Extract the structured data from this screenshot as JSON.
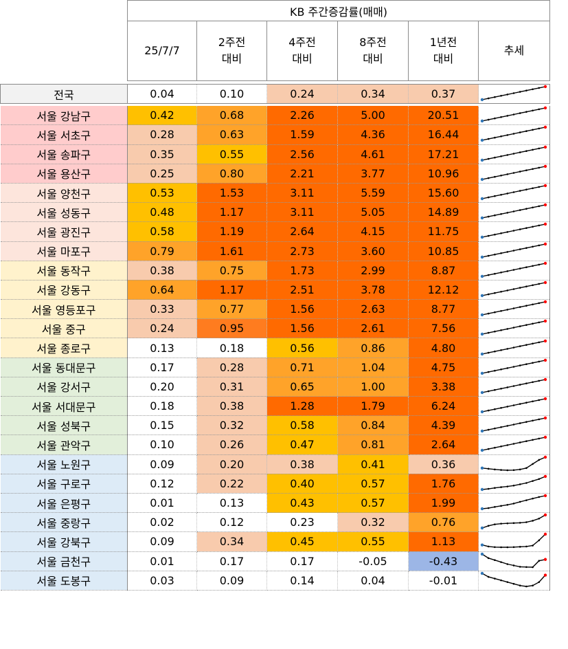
{
  "header": {
    "group_title": "KB 주간증감률(매매)",
    "columns": [
      {
        "line1": "25/7/7",
        "line2": ""
      },
      {
        "line1": "2주전",
        "line2": "대비"
      },
      {
        "line1": "4주전",
        "line2": "대비"
      },
      {
        "line1": "8주전",
        "line2": "대비"
      },
      {
        "line1": "1년전",
        "line2": "대비"
      }
    ],
    "trend_label": "추세"
  },
  "colors": {
    "cell_white": "#ffffff",
    "cell_peach": "#f8cbad",
    "cell_yellow": "#ffc000",
    "cell_orange_light": "#ffa329",
    "cell_orange": "#ff7c1f",
    "cell_orange_dark": "#ff6a00",
    "cell_blue": "#9cb6e6",
    "group_national": "#f2f2f2",
    "group_pink": "#ffcccc",
    "group_light_pink": "#fde5dc",
    "group_cream": "#fff2cc",
    "group_green": "#e2efda",
    "group_blue": "#ddebf7",
    "sparkline_line": "#000000",
    "sparkline_start": "#2e75b6",
    "sparkline_end": "#ff0000"
  },
  "chart_data": {
    "type": "table",
    "title": "KB 주간증감률(매매)",
    "columns": [
      "25/7/7",
      "2주전 대비",
      "4주전 대비",
      "8주전 대비",
      "1년전 대비",
      "추세"
    ],
    "rows": [
      {
        "region": "전국",
        "group": "national",
        "values": [
          0.04,
          0.1,
          0.24,
          0.34,
          0.37
        ],
        "colors": [
          "white",
          "white",
          "peach",
          "peach",
          "peach"
        ],
        "trend": [
          1,
          2,
          3,
          4,
          5,
          6,
          7,
          8,
          9,
          10,
          11
        ]
      },
      {
        "region": "서울 강남구",
        "group": "pink",
        "values": [
          0.42,
          0.68,
          2.26,
          5.0,
          20.51
        ],
        "colors": [
          "yellow",
          "orange_light",
          "orange_dark",
          "orange_dark",
          "orange_dark"
        ],
        "trend": [
          1,
          2,
          3,
          4,
          5,
          6,
          7,
          8,
          9,
          10,
          11
        ]
      },
      {
        "region": "서울 서초구",
        "group": "pink",
        "values": [
          0.28,
          0.63,
          1.59,
          4.36,
          16.44
        ],
        "colors": [
          "peach",
          "orange_light",
          "orange_dark",
          "orange_dark",
          "orange_dark"
        ],
        "trend": [
          1,
          2,
          3,
          4,
          5,
          6,
          7,
          8,
          9,
          10,
          11
        ]
      },
      {
        "region": "서울 송파구",
        "group": "pink",
        "values": [
          0.35,
          0.55,
          2.56,
          4.61,
          17.21
        ],
        "colors": [
          "peach",
          "yellow",
          "orange_dark",
          "orange_dark",
          "orange_dark"
        ],
        "trend": [
          1,
          2,
          3,
          4,
          5,
          6,
          7,
          8,
          9,
          10,
          11
        ]
      },
      {
        "region": "서울 용산구",
        "group": "pink",
        "values": [
          0.25,
          0.8,
          2.21,
          3.77,
          10.96
        ],
        "colors": [
          "peach",
          "orange_light",
          "orange_dark",
          "orange_dark",
          "orange_dark"
        ],
        "trend": [
          1,
          2,
          3,
          4,
          5,
          6,
          7,
          8,
          9,
          10,
          11
        ]
      },
      {
        "region": "서울 양천구",
        "group": "light_pink",
        "values": [
          0.53,
          1.53,
          3.11,
          5.59,
          15.6
        ],
        "colors": [
          "yellow",
          "orange_dark",
          "orange_dark",
          "orange_dark",
          "orange_dark"
        ],
        "trend": [
          1,
          2,
          3,
          4,
          5,
          6,
          7,
          8,
          9,
          10,
          11
        ]
      },
      {
        "region": "서울 성동구",
        "group": "light_pink",
        "values": [
          0.48,
          1.17,
          3.11,
          5.05,
          14.89
        ],
        "colors": [
          "yellow",
          "orange_dark",
          "orange_dark",
          "orange_dark",
          "orange_dark"
        ],
        "trend": [
          1,
          2,
          3,
          4,
          5,
          6,
          7,
          8,
          9,
          10,
          11
        ]
      },
      {
        "region": "서울 광진구",
        "group": "light_pink",
        "values": [
          0.58,
          1.19,
          2.64,
          4.15,
          11.75
        ],
        "colors": [
          "yellow",
          "orange_dark",
          "orange_dark",
          "orange_dark",
          "orange_dark"
        ],
        "trend": [
          1,
          2,
          3,
          4,
          5,
          6,
          7,
          8,
          9,
          10,
          11
        ]
      },
      {
        "region": "서울 마포구",
        "group": "light_pink",
        "values": [
          0.79,
          1.61,
          2.73,
          3.6,
          10.85
        ],
        "colors": [
          "orange_light",
          "orange_dark",
          "orange_dark",
          "orange_dark",
          "orange_dark"
        ],
        "trend": [
          1,
          2,
          3,
          4,
          5,
          6,
          7,
          8,
          9,
          10,
          11
        ]
      },
      {
        "region": "서울 동작구",
        "group": "cream",
        "values": [
          0.38,
          0.75,
          1.73,
          2.99,
          8.87
        ],
        "colors": [
          "peach",
          "orange_light",
          "orange_dark",
          "orange_dark",
          "orange_dark"
        ],
        "trend": [
          1,
          2,
          3,
          4,
          5,
          6,
          7,
          8,
          9,
          10,
          11
        ]
      },
      {
        "region": "서울 강동구",
        "group": "cream",
        "values": [
          0.64,
          1.17,
          2.51,
          3.78,
          12.12
        ],
        "colors": [
          "orange_light",
          "orange_dark",
          "orange_dark",
          "orange_dark",
          "orange_dark"
        ],
        "trend": [
          1,
          2,
          3,
          4,
          5,
          6,
          7,
          8,
          9,
          10,
          11
        ]
      },
      {
        "region": "서울 영등포구",
        "group": "cream",
        "values": [
          0.33,
          0.77,
          1.56,
          2.63,
          8.77
        ],
        "colors": [
          "peach",
          "orange_light",
          "orange_dark",
          "orange_dark",
          "orange_dark"
        ],
        "trend": [
          1,
          2,
          3,
          4,
          5,
          6,
          7,
          8,
          9,
          10,
          11
        ]
      },
      {
        "region": "서울 중구",
        "group": "cream",
        "values": [
          0.24,
          0.95,
          1.56,
          2.61,
          7.56
        ],
        "colors": [
          "peach",
          "orange",
          "orange_dark",
          "orange_dark",
          "orange_dark"
        ],
        "trend": [
          1,
          2,
          3,
          4,
          5,
          6,
          7,
          8,
          9,
          10,
          11
        ]
      },
      {
        "region": "서울 종로구",
        "group": "cream",
        "values": [
          0.13,
          0.18,
          0.56,
          0.86,
          4.8
        ],
        "colors": [
          "white",
          "white",
          "yellow",
          "orange_light",
          "orange_dark"
        ],
        "trend": [
          1,
          2,
          3,
          4,
          5,
          6,
          7,
          8,
          9,
          10,
          11
        ]
      },
      {
        "region": "서울 동대문구",
        "group": "green",
        "values": [
          0.17,
          0.28,
          0.71,
          1.04,
          4.75
        ],
        "colors": [
          "white",
          "peach",
          "orange_light",
          "orange_light",
          "orange_dark"
        ],
        "trend": [
          1,
          2,
          3,
          4,
          5,
          6,
          7,
          8,
          9,
          10,
          11
        ]
      },
      {
        "region": "서울 강서구",
        "group": "green",
        "values": [
          0.2,
          0.31,
          0.65,
          1.0,
          3.38
        ],
        "colors": [
          "white",
          "peach",
          "orange_light",
          "orange_light",
          "orange_dark"
        ],
        "trend": [
          1,
          2,
          3,
          4,
          5,
          6,
          7,
          8,
          9,
          10,
          11
        ]
      },
      {
        "region": "서울 서대문구",
        "group": "green",
        "values": [
          0.18,
          0.38,
          1.28,
          1.79,
          6.24
        ],
        "colors": [
          "white",
          "peach",
          "orange_dark",
          "orange_dark",
          "orange_dark"
        ],
        "trend": [
          1,
          2,
          3,
          4,
          5,
          6,
          7,
          8,
          9,
          10,
          11
        ]
      },
      {
        "region": "서울 성북구",
        "group": "green",
        "values": [
          0.15,
          0.32,
          0.58,
          0.84,
          4.39
        ],
        "colors": [
          "white",
          "peach",
          "yellow",
          "orange_light",
          "orange_dark"
        ],
        "trend": [
          1,
          2,
          3,
          4,
          5,
          6,
          7,
          8,
          9,
          10,
          11
        ]
      },
      {
        "region": "서울 관악구",
        "group": "green",
        "values": [
          0.1,
          0.26,
          0.47,
          0.81,
          2.64
        ],
        "colors": [
          "white",
          "peach",
          "yellow",
          "orange_light",
          "orange_dark"
        ],
        "trend": [
          1,
          2,
          3,
          4,
          5,
          6,
          7,
          8,
          9,
          10,
          11
        ]
      },
      {
        "region": "서울 노원구",
        "group": "blue",
        "values": [
          0.09,
          0.2,
          0.38,
          0.41,
          0.36
        ],
        "colors": [
          "white",
          "peach",
          "peach",
          "yellow",
          "peach"
        ],
        "trend": [
          3,
          2.5,
          2,
          1.6,
          1.4,
          1.5,
          2,
          3,
          6,
          9,
          11
        ]
      },
      {
        "region": "서울 구로구",
        "group": "blue",
        "values": [
          0.12,
          0.22,
          0.4,
          0.57,
          1.76
        ],
        "colors": [
          "white",
          "peach",
          "yellow",
          "yellow",
          "orange_dark"
        ],
        "trend": [
          1,
          1.5,
          2.2,
          2.8,
          3.3,
          4,
          5,
          6,
          7.5,
          9,
          11
        ]
      },
      {
        "region": "서울 은평구",
        "group": "blue",
        "values": [
          0.01,
          0.13,
          0.43,
          0.57,
          1.99
        ],
        "colors": [
          "white",
          "white",
          "yellow",
          "yellow",
          "orange_dark"
        ],
        "trend": [
          1,
          1.5,
          2.4,
          3.2,
          4,
          5,
          6.3,
          7.5,
          8.8,
          10,
          11
        ]
      },
      {
        "region": "서울 중랑구",
        "group": "blue",
        "values": [
          0.02,
          0.12,
          0.23,
          0.32,
          0.76
        ],
        "colors": [
          "white",
          "white",
          "white",
          "peach",
          "orange_light"
        ],
        "trend": [
          2,
          3.5,
          4.5,
          5,
          5.2,
          5.4,
          5.6,
          6,
          7,
          8.5,
          11
        ]
      },
      {
        "region": "서울 강북구",
        "group": "blue",
        "values": [
          0.09,
          0.34,
          0.45,
          0.55,
          1.13
        ],
        "colors": [
          "white",
          "peach",
          "yellow",
          "yellow",
          "orange_dark"
        ],
        "trend": [
          4,
          3,
          2.6,
          2.5,
          2.5,
          2.6,
          2.8,
          3,
          3.6,
          7,
          11
        ]
      },
      {
        "region": "서울 금천구",
        "group": "blue",
        "values": [
          0.01,
          0.17,
          0.17,
          -0.05,
          -0.43
        ],
        "colors": [
          "white",
          "white",
          "white",
          "white",
          "blue"
        ],
        "trend": [
          11,
          8,
          6.5,
          5,
          3.5,
          2.5,
          1.5,
          1.3,
          1.2,
          6,
          7
        ]
      },
      {
        "region": "서울 도봉구",
        "group": "blue",
        "values": [
          0.03,
          0.09,
          0.14,
          0.04,
          -0.01
        ],
        "colors": [
          "white",
          "white",
          "white",
          "white",
          "white"
        ],
        "trend": [
          9,
          7,
          6,
          5,
          4,
          3,
          2,
          1.5,
          2,
          4,
          8
        ]
      }
    ]
  }
}
